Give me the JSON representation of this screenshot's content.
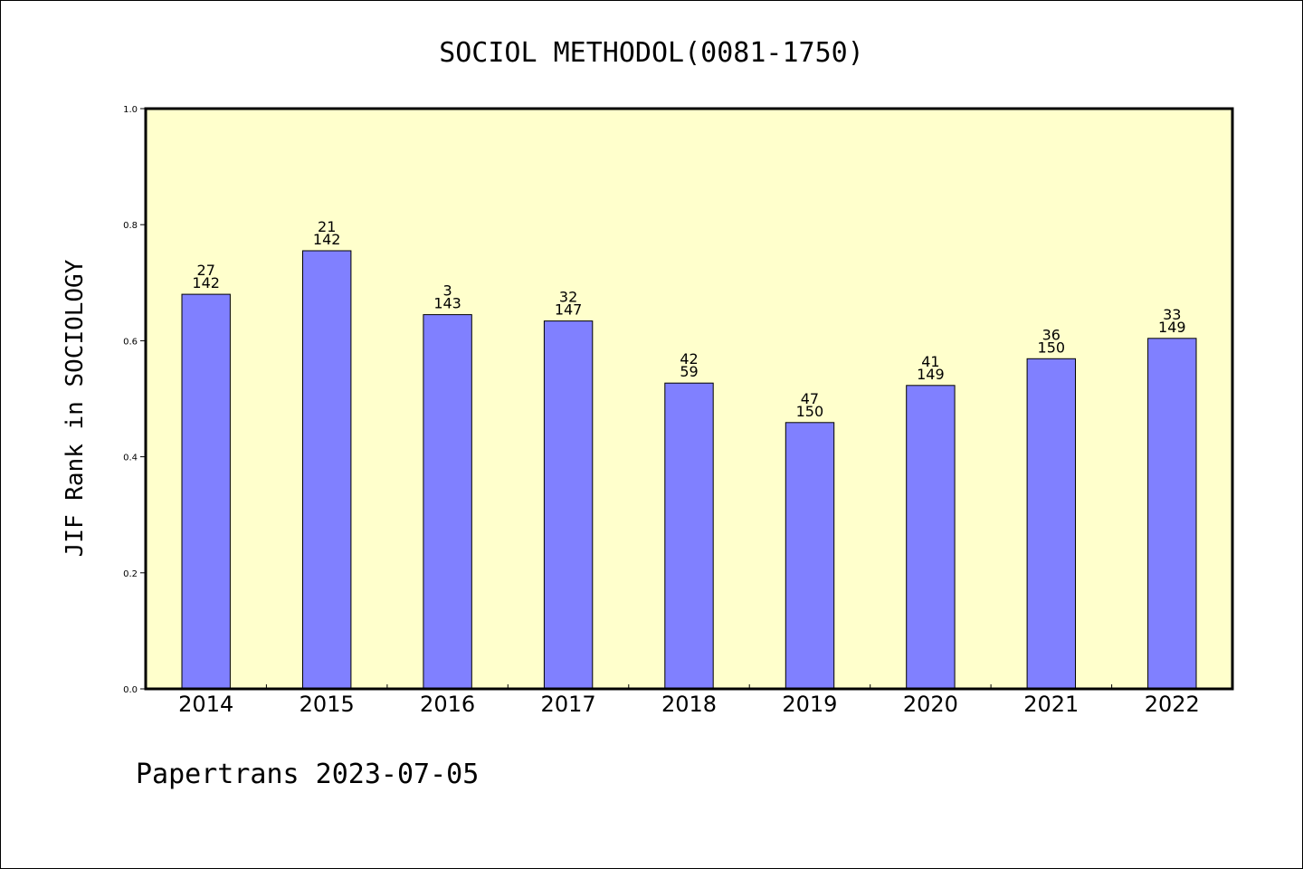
{
  "colors": {
    "plot_background": "#ffffcc",
    "bar_fill": "#8080ff",
    "bar_stroke": "#000000"
  },
  "chart_data": {
    "type": "bar",
    "title": "SOCIOL METHODOL(0081-1750)",
    "ylabel": "JIF Rank in SOCIOLOGY",
    "xlabel": "",
    "ylim": [
      0,
      1.0
    ],
    "yticks": [
      "0.0",
      "0.2",
      "0.4",
      "0.6",
      "0.8",
      "1.0"
    ],
    "grid": false,
    "categories": [
      "2014",
      "2015",
      "2016",
      "2017",
      "2018",
      "2019",
      "2020",
      "2021",
      "2022"
    ],
    "values": [
      0.68,
      0.755,
      0.645,
      0.634,
      0.527,
      0.459,
      0.523,
      0.569,
      0.604
    ],
    "rank_labels": [
      "27",
      "21",
      "3",
      "32",
      "42",
      "47",
      "41",
      "36",
      "33"
    ],
    "total_labels": [
      "142",
      "142",
      "143",
      "147",
      "59",
      "150",
      "149",
      "150",
      "149"
    ]
  },
  "footer": "Papertrans 2023-07-05"
}
